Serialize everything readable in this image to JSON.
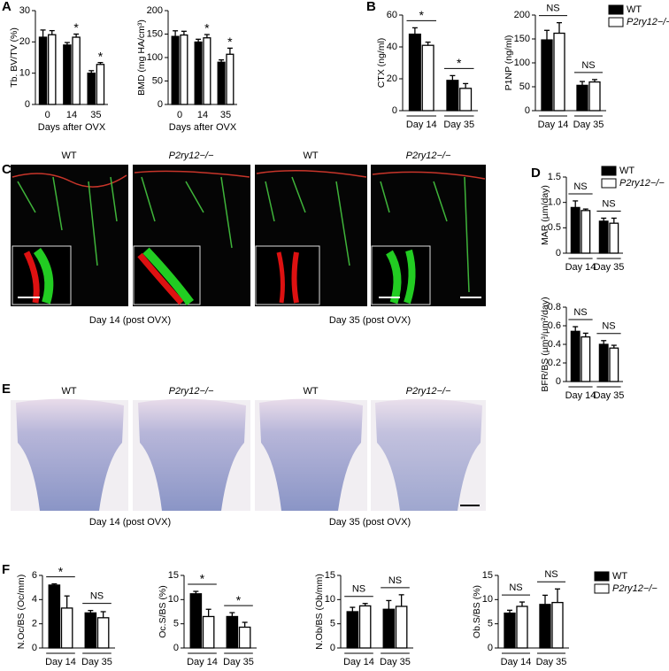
{
  "figure": {
    "panels": [
      "A",
      "B",
      "C",
      "D",
      "E",
      "F"
    ],
    "C": {
      "labels": [
        "WT",
        "P2ry12−/−",
        "WT",
        "P2ry12−/−"
      ],
      "captions": [
        "Day 14 (post OVX)",
        "Day 35 (post OVX)"
      ]
    },
    "E": {
      "labels": [
        "WT",
        "P2ry12−/−",
        "WT",
        "P2ry12−/−"
      ],
      "captions": [
        "Day 14 (post OVX)",
        "Day 35 (post OVX)"
      ]
    }
  },
  "chart_data": [
    {
      "type": "bar",
      "ylabel": "Tb. BV/TV (%)",
      "xlabel": "Days after OVX",
      "categories": [
        "0",
        "14",
        "35"
      ],
      "series": [
        {
          "name": "WT",
          "color": "#000000",
          "values": [
            21.5,
            19,
            10
          ],
          "errors": [
            2.3,
            0.8,
            0.8
          ]
        },
        {
          "name": "P2ry12−/−",
          "color": "#ffffff",
          "values": [
            22.3,
            21.5,
            12.8
          ],
          "errors": [
            1.3,
            1,
            0.6
          ]
        }
      ],
      "significance": [
        null,
        "*",
        "*"
      ],
      "ylim": [
        0,
        30
      ],
      "yticks": [
        0,
        10,
        20,
        30
      ]
    },
    {
      "type": "bar",
      "ylabel": "BMD (mg HA/cm³)",
      "xlabel": "Days after OVX",
      "categories": [
        "0",
        "14",
        "35"
      ],
      "series": [
        {
          "name": "WT",
          "color": "#000000",
          "values": [
            145,
            133,
            90
          ],
          "errors": [
            12,
            6,
            5
          ]
        },
        {
          "name": "P2ry12−/−",
          "color": "#ffffff",
          "values": [
            148,
            142,
            107
          ],
          "errors": [
            8,
            7,
            13
          ]
        }
      ],
      "significance": [
        null,
        "*",
        "*"
      ],
      "ylim": [
        0,
        200
      ],
      "yticks": [
        0,
        50,
        100,
        150,
        200
      ]
    },
    {
      "type": "bar",
      "ylabel": "CTX (ng/ml)",
      "categories": [
        "Day 14",
        "Day 35"
      ],
      "series": [
        {
          "name": "WT",
          "color": "#000000",
          "values": [
            48,
            19
          ],
          "errors": [
            4,
            3
          ]
        },
        {
          "name": "P2ry12−/−",
          "color": "#ffffff",
          "values": [
            41,
            14
          ],
          "errors": [
            2,
            3
          ]
        }
      ],
      "significance": [
        "*",
        "*"
      ],
      "ylim": [
        0,
        60
      ],
      "yticks": [
        0,
        20,
        40,
        60
      ]
    },
    {
      "type": "bar",
      "ylabel": "P1NP (ng/ml)",
      "categories": [
        "Day 14",
        "Day 35"
      ],
      "series": [
        {
          "name": "WT",
          "color": "#000000",
          "values": [
            148,
            53
          ],
          "errors": [
            20,
            8
          ]
        },
        {
          "name": "P2ry12−/−",
          "color": "#ffffff",
          "values": [
            162,
            60
          ],
          "errors": [
            22,
            5
          ]
        }
      ],
      "significance": [
        "NS",
        "NS"
      ],
      "ylim": [
        0,
        200
      ],
      "yticks": [
        0,
        50,
        100,
        150,
        200
      ],
      "legend": "upper right"
    },
    {
      "type": "bar",
      "ylabel": "MAR (µm/day)",
      "categories": [
        "Day 14",
        "Day 35"
      ],
      "series": [
        {
          "name": "WT",
          "color": "#000000",
          "values": [
            0.9,
            0.63
          ],
          "errors": [
            0.13,
            0.06
          ]
        },
        {
          "name": "P2ry12−/−",
          "color": "#ffffff",
          "values": [
            0.84,
            0.59
          ],
          "errors": [
            0.03,
            0.1
          ]
        }
      ],
      "significance": [
        "NS",
        "NS"
      ],
      "ylim": [
        0,
        1.5
      ],
      "yticks": [
        0,
        0.5,
        {
          "value": 1,
          "label": "1.0"
        },
        1.5
      ],
      "legend": "upper right"
    },
    {
      "type": "bar",
      "ylabel": "BFR/BS (µm³/µm²/day)",
      "categories": [
        "Day 14",
        "Day 35"
      ],
      "series": [
        {
          "name": "WT",
          "color": "#000000",
          "values": [
            0.54,
            0.4
          ],
          "errors": [
            0.05,
            0.04
          ]
        },
        {
          "name": "P2ry12−/−",
          "color": "#ffffff",
          "values": [
            0.48,
            0.36
          ],
          "errors": [
            0.04,
            0.03
          ]
        }
      ],
      "significance": [
        "NS",
        "NS"
      ],
      "ylim": [
        0,
        0.8
      ],
      "yticks": [
        0,
        0.2,
        0.4,
        0.6,
        0.8
      ]
    },
    {
      "type": "bar",
      "ylabel": "N.Oc/BS (Oc/mm)",
      "categories": [
        "Day 14",
        "Day 35"
      ],
      "series": [
        {
          "name": "WT",
          "color": "#000000",
          "values": [
            5.2,
            2.9
          ],
          "errors": [
            0.1,
            0.2
          ]
        },
        {
          "name": "P2ry12−/−",
          "color": "#ffffff",
          "values": [
            3.3,
            2.5
          ],
          "errors": [
            1,
            0.5
          ]
        }
      ],
      "significance": [
        "*",
        "NS"
      ],
      "ylim": [
        0,
        6
      ],
      "yticks": [
        0,
        2,
        4,
        6
      ]
    },
    {
      "type": "bar",
      "ylabel": "Oc.S/BS (%)",
      "categories": [
        "Day 14",
        "Day 35"
      ],
      "series": [
        {
          "name": "WT",
          "color": "#000000",
          "values": [
            11.2,
            6.5
          ],
          "errors": [
            0.5,
            0.8
          ]
        },
        {
          "name": "P2ry12−/−",
          "color": "#ffffff",
          "values": [
            6.5,
            4.3
          ],
          "errors": [
            1.5,
            1
          ]
        }
      ],
      "significance": [
        "*",
        "*"
      ],
      "ylim": [
        0,
        15
      ],
      "yticks": [
        0,
        5,
        10,
        15
      ]
    },
    {
      "type": "bar",
      "ylabel": "N.Ob/BS (Ob/mm)",
      "categories": [
        "Day 14",
        "Day 35"
      ],
      "series": [
        {
          "name": "WT",
          "color": "#000000",
          "values": [
            7.5,
            8
          ],
          "errors": [
            0.9,
            1.8
          ]
        },
        {
          "name": "P2ry12−/−",
          "color": "#ffffff",
          "values": [
            8.7,
            8.6
          ],
          "errors": [
            0.5,
            2.4
          ]
        }
      ],
      "significance": [
        "NS",
        "NS"
      ],
      "ylim": [
        0,
        15
      ],
      "yticks": [
        0,
        5,
        10,
        15
      ]
    },
    {
      "type": "bar",
      "ylabel": "Ob.S/BS (%)",
      "categories": [
        "Day 14",
        "Day 35"
      ],
      "series": [
        {
          "name": "WT",
          "color": "#000000",
          "values": [
            7.2,
            9
          ],
          "errors": [
            0.6,
            1.9
          ]
        },
        {
          "name": "P2ry12−/−",
          "color": "#ffffff",
          "values": [
            8.6,
            9.4
          ],
          "errors": [
            0.9,
            2.8
          ]
        }
      ],
      "significance": [
        "NS",
        "NS"
      ],
      "ylim": [
        0,
        15
      ],
      "yticks": [
        0,
        5,
        10,
        15
      ],
      "legend": "upper right"
    }
  ]
}
